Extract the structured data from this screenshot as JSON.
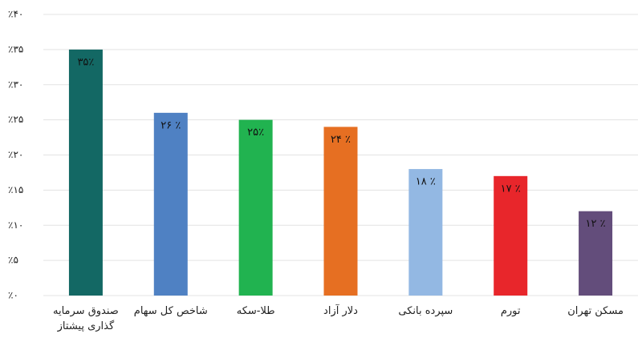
{
  "chart_data": {
    "type": "bar",
    "categories": [
      "صندوق سرمایه گذاری پیشتاز",
      "شاخص کل سهام",
      "طلا-سکه",
      "دلار آزاد",
      "سپرده بانکی",
      "تورم",
      "مسکن تهران"
    ],
    "values": [
      35,
      26,
      25,
      24,
      18,
      17,
      12
    ],
    "value_labels": [
      "۳۵٪",
      "۲۶ ٪",
      "۲۵٪",
      "۲۴ ٪",
      "۱۸ ٪",
      "۱۷ ٪",
      "۱۲ ٪"
    ],
    "colors": [
      "#136864",
      "#4f81c3",
      "#21b350",
      "#e66f22",
      "#93b8e3",
      "#e8262b",
      "#634d7b"
    ],
    "ylim": [
      0,
      40
    ],
    "yticks": [
      {
        "value": 0,
        "label": "٪۰"
      },
      {
        "value": 5,
        "label": "٪۵"
      },
      {
        "value": 10,
        "label": "٪۱۰"
      },
      {
        "value": 15,
        "label": "٪۱۵"
      },
      {
        "value": 20,
        "label": "٪۲۰"
      },
      {
        "value": 25,
        "label": "٪۲۵"
      },
      {
        "value": 30,
        "label": "٪۳۰"
      },
      {
        "value": 35,
        "label": "٪۳۵"
      },
      {
        "value": 40,
        "label": "٪۴۰"
      }
    ],
    "grid": true
  }
}
